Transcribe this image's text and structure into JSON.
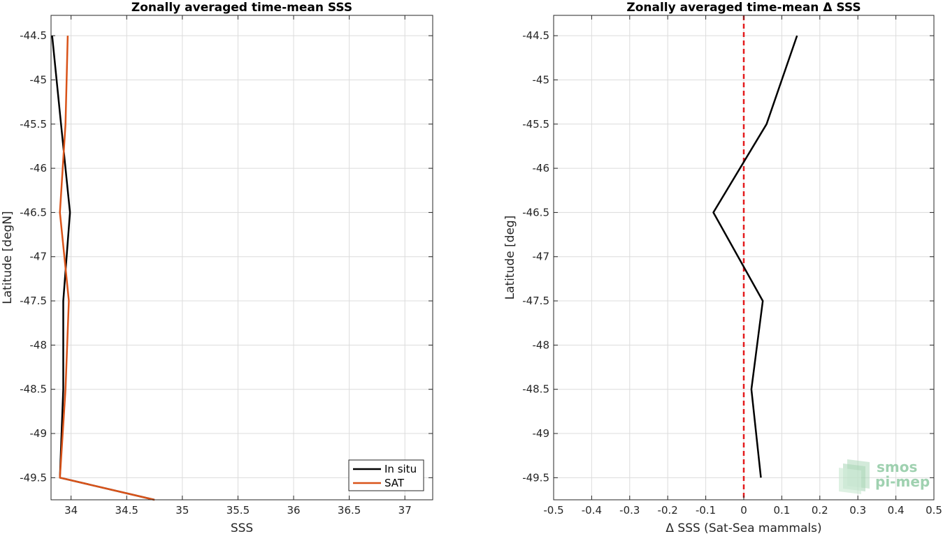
{
  "chart_data": [
    {
      "type": "line",
      "title": "Zonally averaged time-mean SSS",
      "xlabel": "SSS",
      "ylabel": "Latitude [degN]",
      "xlim": [
        33.82,
        37.25
      ],
      "ylim": [
        -49.75,
        -44.27
      ],
      "xticks": [
        34,
        34.5,
        35,
        35.5,
        36,
        36.5,
        37
      ],
      "xtick_labels": [
        "34",
        "34.5",
        "35",
        "35.5",
        "36",
        "36.5",
        "37"
      ],
      "yticks": [
        -44.5,
        -45,
        -45.5,
        -46,
        -46.5,
        -47,
        -47.5,
        -48,
        -48.5,
        -49,
        -49.5
      ],
      "ytick_labels": [
        "-44.5",
        "-45",
        "-45.5",
        "-46",
        "-46.5",
        "-47",
        "-47.5",
        "-48",
        "-48.5",
        "-49",
        "-49.5"
      ],
      "grid": true,
      "legend_position": "bottom-right",
      "series": [
        {
          "name": "In situ",
          "color": "#000000",
          "points": [
            {
              "x": 33.83,
              "y": -44.5
            },
            {
              "x": 33.91,
              "y": -45.5
            },
            {
              "x": 33.99,
              "y": -46.5
            },
            {
              "x": 33.93,
              "y": -47.5
            },
            {
              "x": 33.93,
              "y": -48.5
            },
            {
              "x": 33.9,
              "y": -49.5
            },
            {
              "x": 34.75,
              "y": -49.75
            }
          ]
        },
        {
          "name": "SAT",
          "color": "#d95319",
          "points": [
            {
              "x": 33.97,
              "y": -44.5
            },
            {
              "x": 33.95,
              "y": -45.5
            },
            {
              "x": 33.9,
              "y": -46.5
            },
            {
              "x": 33.98,
              "y": -47.5
            },
            {
              "x": 33.95,
              "y": -48.5
            },
            {
              "x": 33.9,
              "y": -49.5
            },
            {
              "x": 34.75,
              "y": -49.75
            }
          ]
        }
      ]
    },
    {
      "type": "line",
      "title": "Zonally averaged time-mean Δ SSS",
      "xlabel": "Δ SSS (Sat-Sea mammals)",
      "ylabel": "Latitude [deg]",
      "xlim": [
        -0.5,
        0.5
      ],
      "ylim": [
        -49.75,
        -44.27
      ],
      "xticks": [
        -0.5,
        -0.4,
        -0.3,
        -0.2,
        -0.1,
        0,
        0.1,
        0.2,
        0.3,
        0.4,
        0.5
      ],
      "xtick_labels": [
        "-0.5",
        "-0.4",
        "-0.3",
        "-0.2",
        "-0.1",
        "0",
        "0.1",
        "0.2",
        "0.3",
        "0.4",
        "0.5"
      ],
      "yticks": [
        -44.5,
        -45,
        -45.5,
        -46,
        -46.5,
        -47,
        -47.5,
        -48,
        -48.5,
        -49,
        -49.5
      ],
      "ytick_labels": [
        "-44.5",
        "-45",
        "-45.5",
        "-46",
        "-46.5",
        "-47",
        "-47.5",
        "-48",
        "-48.5",
        "-49",
        "-49.5"
      ],
      "grid": true,
      "reference_line": {
        "x": 0,
        "color": "#e41a1c",
        "style": "dashed"
      },
      "series": [
        {
          "color": "#000000",
          "points": [
            {
              "x": 0.14,
              "y": -44.5
            },
            {
              "x": 0.06,
              "y": -45.5
            },
            {
              "x": -0.08,
              "y": -46.5
            },
            {
              "x": 0.05,
              "y": -47.5
            },
            {
              "x": 0.02,
              "y": -48.5
            },
            {
              "x": 0.045,
              "y": -49.5
            }
          ]
        }
      ]
    }
  ],
  "watermark": {
    "line1": "smos",
    "line2": "pi-mep",
    "color": "#8fc9a3"
  }
}
